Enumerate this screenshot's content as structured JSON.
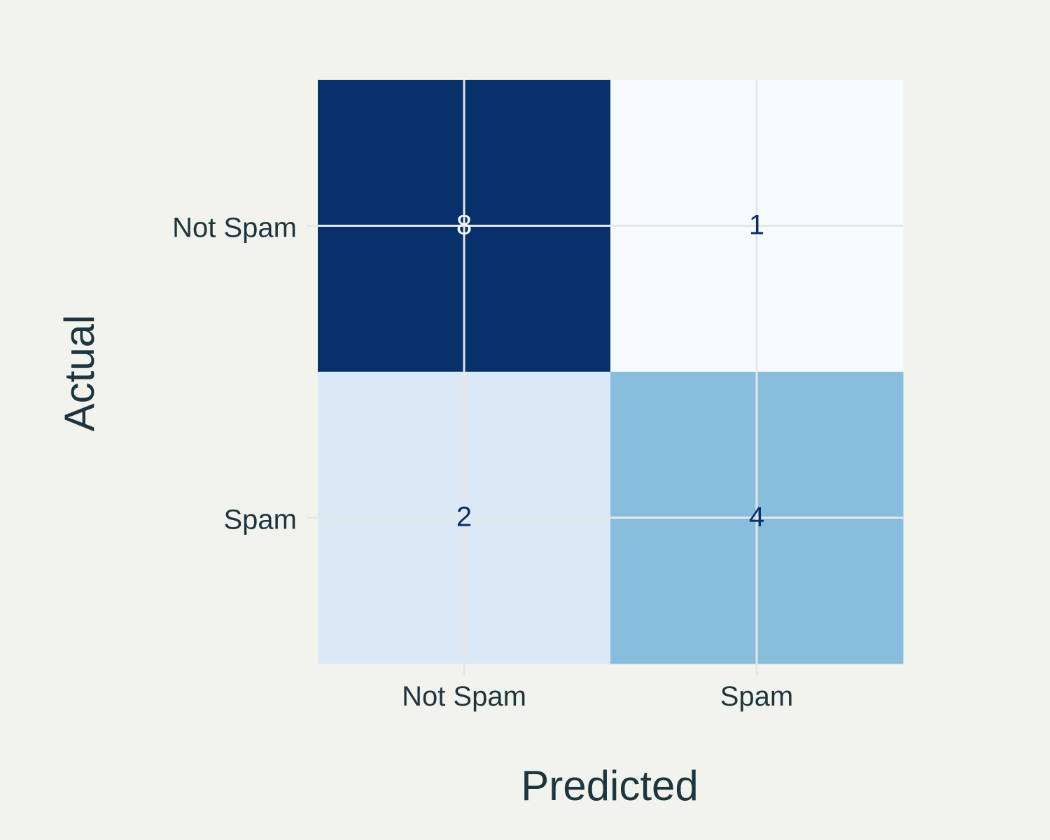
{
  "chart_data": {
    "type": "heatmap",
    "title": "",
    "xlabel": "Predicted",
    "ylabel": "Actual",
    "x_categories": [
      "Not Spam",
      "Spam"
    ],
    "y_categories": [
      "Not Spam",
      "Spam"
    ],
    "values": [
      [
        8,
        1
      ],
      [
        2,
        4
      ]
    ],
    "colormap": "Blues",
    "colors": {
      "low": "#f7fbff",
      "mid_low": "#dbe9f6",
      "mid": "#89bedc",
      "high": "#08306b",
      "text_dark": "#08306b",
      "text_light": "#f7fbff",
      "grid": "#e6e6e6",
      "background": "#f3f3ee",
      "label": "#1c3640"
    },
    "grid": true,
    "colorbar": false
  }
}
